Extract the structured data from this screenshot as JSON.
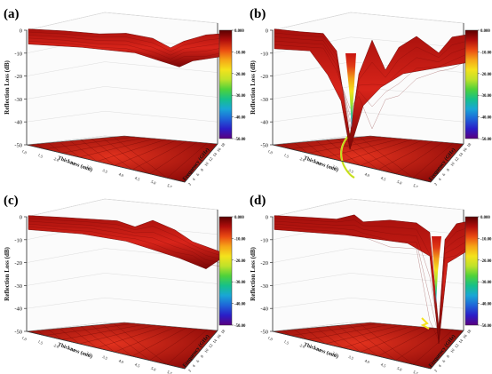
{
  "figure": {
    "panel_labels": [
      "(a)",
      "(b)",
      "(c)",
      "(d)"
    ]
  },
  "chart_data": [
    {
      "type": "surface3d",
      "panel": "(a)",
      "zlabel": "Reflection Loss (dB)",
      "xlabel": "Thickness (mm)",
      "ylabel": "Frequency (GHz)",
      "zlim": [
        -50,
        0
      ],
      "zticks": [
        "0",
        "-10",
        "-20",
        "-30",
        "-40",
        "-50"
      ],
      "thickness_ticks": [
        "1.0",
        "1.5",
        "2.0",
        "2.5",
        "3.0",
        "3.5",
        "4.0",
        "4.5",
        "5.0",
        "5.5"
      ],
      "frequency_ticks": [
        "2",
        "4",
        "6",
        "8",
        "10",
        "12",
        "14",
        "16",
        "18"
      ],
      "colorbar": {
        "ticks": [
          "0.000",
          "-10.00",
          "-20.00",
          "-30.00",
          "-40.00",
          "-50.00"
        ],
        "colormap": "rainbow-red-to-purple"
      },
      "surface_description": "nearly flat surface between 0 and -5 dB with a shallow dip near -6 dB at mid frequency, large thickness",
      "min_rl_db": -6
    },
    {
      "type": "surface3d",
      "panel": "(b)",
      "zlabel": "Reflection Loss (dB)",
      "xlabel": "Thickness (mm)",
      "ylabel": "Frequency (GHz)",
      "zlim": [
        -50,
        0
      ],
      "zticks": [
        "0",
        "-10",
        "-20",
        "-30",
        "-40",
        "-50"
      ],
      "thickness_ticks": [
        "1.0",
        "1.5",
        "2.0",
        "2.5",
        "3.0",
        "3.5",
        "4.0",
        "4.5",
        "5.0",
        "5.5"
      ],
      "frequency_ticks": [
        "2",
        "4",
        "6",
        "8",
        "10",
        "12",
        "14",
        "16",
        "18"
      ],
      "colorbar": {
        "ticks": [
          "0.000",
          "-10.00",
          "-20.00",
          "-30.00",
          "-40.00",
          "-50.00"
        ],
        "colormap": "rainbow-red-to-purple"
      },
      "surface_description": "deep narrow absorption peak reaching about -47 dB; secondary dips around -15 to -22 dB",
      "min_rl_db": -47
    },
    {
      "type": "surface3d",
      "panel": "(c)",
      "zlabel": "Reflection Loss (dB)",
      "xlabel": "Thickness (mm)",
      "ylabel": "Frequency (GHz)",
      "zlim": [
        -50,
        0
      ],
      "zticks": [
        "0",
        "-10",
        "-20",
        "-30",
        "-40",
        "-50"
      ],
      "thickness_ticks": [
        "1.0",
        "1.5",
        "2.0",
        "2.5",
        "3.0",
        "3.5",
        "4.0",
        "4.5",
        "5.0",
        "5.5"
      ],
      "frequency_ticks": [
        "2",
        "4",
        "6",
        "8",
        "10",
        "12",
        "14",
        "16",
        "18"
      ],
      "colorbar": {
        "ticks": [
          "0.000",
          "-10.00",
          "-20.00",
          "-30.00",
          "-40.00",
          "-50.00"
        ],
        "colormap": "rainbow-red-to-purple"
      },
      "surface_description": "wavy surface with dips down to about -16 dB at high frequency",
      "min_rl_db": -16
    },
    {
      "type": "surface3d",
      "panel": "(d)",
      "zlabel": "Reflection Loss (dB)",
      "xlabel": "Thickness (mm)",
      "ylabel": "Frequency (GHz)",
      "zlim": [
        -50,
        0
      ],
      "zticks": [
        "0",
        "-10",
        "-20",
        "-30",
        "-40",
        "-50"
      ],
      "thickness_ticks": [
        "1.0",
        "1.5",
        "2.0",
        "2.5",
        "3.0",
        "3.5",
        "4.0",
        "4.5",
        "5.0",
        "5.5"
      ],
      "frequency_ticks": [
        "2",
        "4",
        "6",
        "8",
        "10",
        "12",
        "14",
        "16",
        "18"
      ],
      "colorbar": {
        "ticks": [
          "0.000",
          "-10.00",
          "-20.00",
          "-30.00",
          "-40.00",
          "-50.00"
        ],
        "colormap": "rainbow-red-to-purple"
      },
      "surface_description": "mostly flat surface with one extremely sharp spike reaching about -48 dB at high frequency",
      "min_rl_db": -48
    }
  ]
}
